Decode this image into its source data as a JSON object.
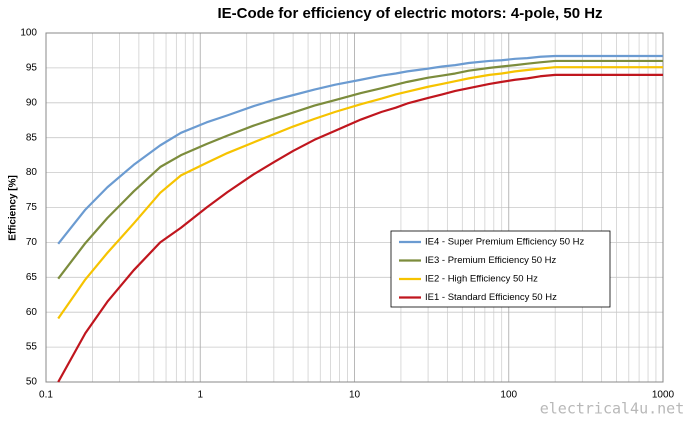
{
  "chart_data": {
    "type": "line",
    "title": "IE-Code for efficiency of electric motors: 4-pole, 50 Hz",
    "y_label": "Efficiency [%]",
    "watermark": "electrical4u.net",
    "x": [
      0.12,
      0.18,
      0.25,
      0.37,
      0.55,
      0.75,
      1.1,
      1.5,
      2.2,
      3,
      4,
      5.5,
      7.5,
      11,
      15,
      18.5,
      22,
      30,
      37,
      45,
      55,
      75,
      90,
      110,
      132,
      160,
      200,
      1000
    ],
    "series": [
      {
        "name": "IE4 - Super Premium Efficiency 50 Hz",
        "color": "#6b9bd1",
        "values": [
          69.8,
          74.7,
          77.9,
          81.1,
          83.9,
          85.7,
          87.2,
          88.2,
          89.5,
          90.4,
          91.1,
          91.9,
          92.6,
          93.3,
          93.9,
          94.2,
          94.5,
          94.9,
          95.2,
          95.4,
          95.7,
          96.0,
          96.1,
          96.3,
          96.4,
          96.6,
          96.7,
          96.7
        ]
      },
      {
        "name": "IE3 - Premium Efficiency 50 Hz",
        "color": "#7c8c3c",
        "values": [
          64.8,
          69.9,
          73.5,
          77.3,
          80.8,
          82.5,
          84.1,
          85.3,
          86.7,
          87.7,
          88.6,
          89.6,
          90.4,
          91.4,
          92.1,
          92.6,
          93.0,
          93.6,
          93.9,
          94.2,
          94.6,
          95.0,
          95.2,
          95.4,
          95.6,
          95.8,
          96.0,
          96.0
        ]
      },
      {
        "name": "IE2 - High Efficiency 50 Hz",
        "color": "#f6c300",
        "values": [
          59.1,
          64.7,
          68.5,
          72.7,
          77.1,
          79.6,
          81.4,
          82.8,
          84.3,
          85.5,
          86.6,
          87.7,
          88.7,
          89.8,
          90.6,
          91.2,
          91.6,
          92.3,
          92.7,
          93.1,
          93.5,
          94.0,
          94.2,
          94.5,
          94.7,
          94.9,
          95.1,
          95.1
        ]
      },
      {
        "name": "IE1 - Standard Efficiency 50 Hz",
        "color": "#c0161e",
        "values": [
          50.0,
          57.0,
          61.5,
          66.0,
          70.0,
          72.1,
          75.0,
          77.2,
          79.7,
          81.5,
          83.1,
          84.7,
          86.0,
          87.6,
          88.7,
          89.3,
          89.9,
          90.7,
          91.2,
          91.7,
          92.1,
          92.7,
          93.0,
          93.3,
          93.5,
          93.8,
          94.0,
          94.0
        ]
      }
    ],
    "xlim": [
      0.1,
      1000
    ],
    "xticks": [
      0.1,
      1,
      10,
      100,
      1000
    ],
    "xscale": "log",
    "ylim": [
      50,
      100
    ],
    "yticks": [
      50,
      55,
      60,
      65,
      70,
      75,
      80,
      85,
      90,
      95,
      100
    ],
    "grid": true,
    "legend": "lower right"
  }
}
